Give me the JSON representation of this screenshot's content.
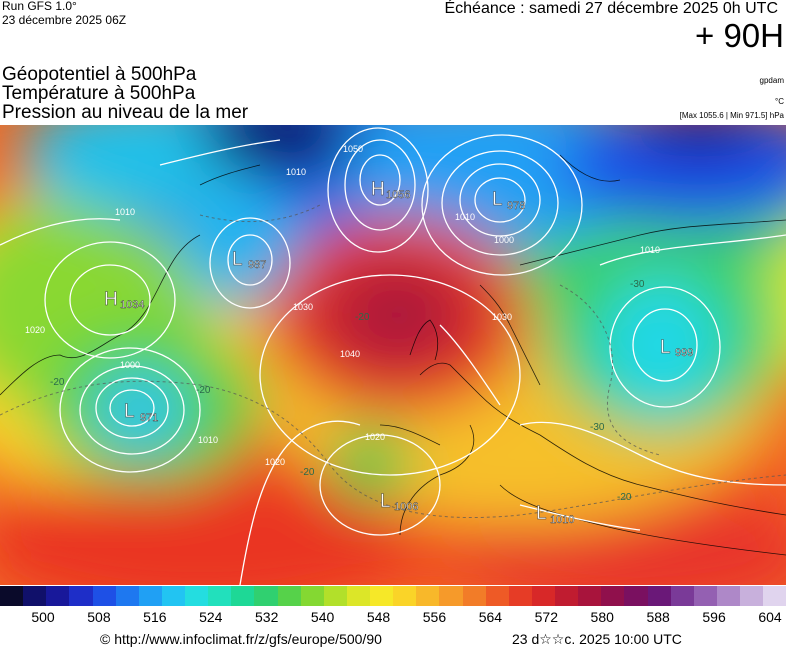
{
  "header": {
    "run": "Run GFS 1.0°",
    "run_date": "23 décembre 2025 06Z",
    "echeance": "Échéance : samedi 27 décembre 2025 0h UTC",
    "lead": "+ 90H",
    "title_lines": [
      "Géopotentiel à 500hPa",
      "Température à 500hPa",
      "Pression au niveau de la mer"
    ],
    "unit_gpdam": "gpdam",
    "unit_c": "°C",
    "minmax": "[Max 1055.6 | Min 971.5] hPa"
  },
  "map": {
    "pressure_centers": [
      {
        "type": "H",
        "value": "1034"
      },
      {
        "type": "L",
        "value": "971"
      },
      {
        "type": "L",
        "value": "987"
      },
      {
        "type": "H",
        "value": "1056"
      },
      {
        "type": "L",
        "value": "978"
      },
      {
        "type": "L",
        "value": "999"
      },
      {
        "type": "L",
        "value": "1006"
      },
      {
        "type": "L",
        "value": "1010"
      }
    ],
    "isobar_labels": [
      "1010",
      "1010",
      "1010",
      "1010",
      "1010",
      "1020",
      "1020",
      "1020",
      "1030",
      "1030",
      "1040",
      "1000",
      "1000",
      "1050"
    ],
    "temp_labels": [
      "-20",
      "-20",
      "-20",
      "-20",
      "-20",
      "-30",
      "-30"
    ]
  },
  "colorbar": {
    "colors": [
      "#0a0a2a",
      "#10106a",
      "#18189a",
      "#1e2ec8",
      "#1e50e6",
      "#1e78f0",
      "#20a0f4",
      "#22c4f2",
      "#24dde0",
      "#22e0bc",
      "#1ed896",
      "#30d070",
      "#56d24a",
      "#84d832",
      "#b2e02a",
      "#dce628",
      "#f6e828",
      "#fad428",
      "#f8b82a",
      "#f69a2a",
      "#f27c28",
      "#ee5a26",
      "#e63c26",
      "#d82828",
      "#c01c30",
      "#a8143c",
      "#90104c",
      "#7a1060",
      "#6a1878",
      "#7a3a98",
      "#9460b2",
      "#ae88c8",
      "#c8b0dc",
      "#e0d4ee"
    ],
    "ticks": [
      "500",
      "508",
      "516",
      "524",
      "532",
      "540",
      "548",
      "556",
      "564",
      "572",
      "580",
      "588",
      "596",
      "604"
    ]
  },
  "footer": {
    "url": "© http://www.infoclimat.fr/z/gfs/europe/500/90",
    "date": "23 d☆☆c. 2025 10:00 UTC"
  }
}
